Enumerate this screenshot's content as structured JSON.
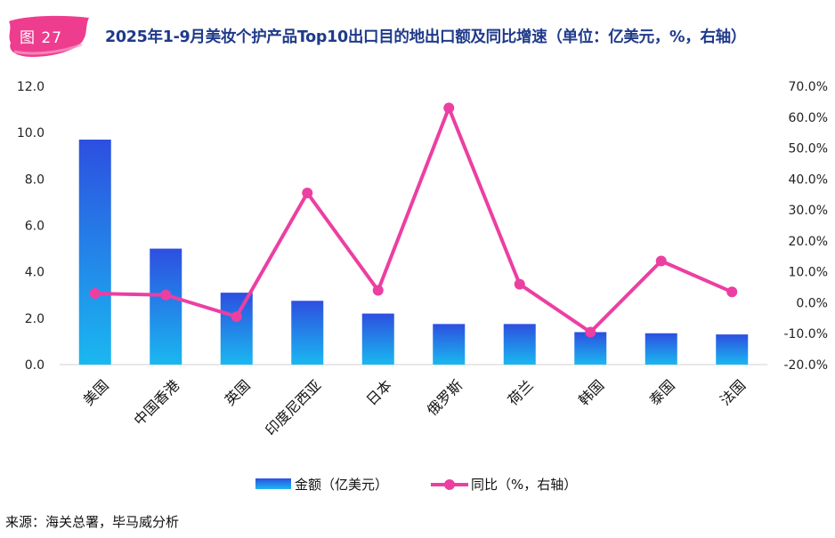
{
  "figure_label": "图 27",
  "title": "2025年1-9月美妆个护产品Top10出口目的地出口额及同比增速（单位：亿美元，%，右轴）",
  "source": "来源：海关总署，毕马威分析",
  "colors": {
    "bar_top": "#2d4fe0",
    "bar_bottom": "#1ab8f0",
    "line": "#ec3fa2",
    "title": "#1f3a8a",
    "badge": "#ee3d8f"
  },
  "chart_data": {
    "type": "bar+line",
    "categories": [
      "美国",
      "中国香港",
      "英国",
      "印度尼西亚",
      "日本",
      "俄罗斯",
      "荷兰",
      "韩国",
      "泰国",
      "法国"
    ],
    "series": [
      {
        "name": "金额（亿美元）",
        "type": "bar",
        "axis": "left",
        "values": [
          9.7,
          5.0,
          3.1,
          2.75,
          2.2,
          1.75,
          1.75,
          1.4,
          1.35,
          1.3
        ]
      },
      {
        "name": "同比（%，右轴）",
        "type": "line",
        "axis": "right",
        "values": [
          3.0,
          2.5,
          -4.5,
          35.5,
          4.0,
          63.0,
          6.0,
          -9.5,
          13.5,
          3.5
        ]
      }
    ],
    "y_left": {
      "min": 0,
      "max": 12,
      "ticks": [
        "0.0",
        "2.0",
        "4.0",
        "6.0",
        "8.0",
        "10.0",
        "12.0"
      ]
    },
    "y_right": {
      "min": -20,
      "max": 70,
      "ticks": [
        "-20.0%",
        "-10.0%",
        "0.0%",
        "10.0%",
        "20.0%",
        "30.0%",
        "40.0%",
        "50.0%",
        "60.0%",
        "70.0%"
      ]
    },
    "legend": [
      "金额（亿美元）",
      "同比（%，右轴）"
    ],
    "legend_position": "bottom"
  }
}
